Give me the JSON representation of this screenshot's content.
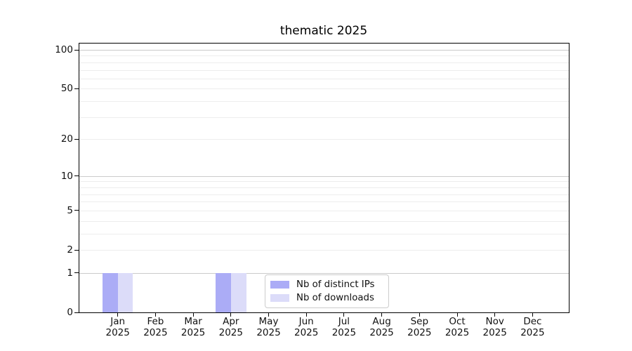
{
  "chart_data": {
    "type": "bar",
    "title": "thematic 2025",
    "categories": [
      "Jan",
      "Feb",
      "Mar",
      "Apr",
      "May",
      "Jun",
      "Jul",
      "Aug",
      "Sep",
      "Oct",
      "Nov",
      "Dec"
    ],
    "x_tick_year": "2025",
    "series": [
      {
        "name": "Nb of distinct IPs",
        "color": "#abacf6",
        "values": [
          1,
          0,
          0,
          1,
          0,
          0,
          0,
          0,
          0,
          0,
          0,
          0
        ]
      },
      {
        "name": "Nb of downloads",
        "color": "#dcdcf9",
        "values": [
          1,
          0,
          0,
          1,
          0,
          0,
          0,
          0,
          0,
          0,
          0,
          0
        ]
      }
    ],
    "yscale": "log1p",
    "ylim": [
      0,
      112
    ],
    "ytick_values": [
      0,
      1,
      2,
      5,
      10,
      20,
      50,
      100
    ],
    "ytick_labels": [
      "0",
      "1",
      "2",
      "5",
      "10",
      "20",
      "50",
      "100"
    ],
    "major_gridlines": [
      1,
      10,
      100
    ],
    "minor_gridlines": [
      2,
      3,
      4,
      5,
      6,
      7,
      8,
      9,
      20,
      30,
      40,
      50,
      60,
      70,
      80,
      90
    ],
    "grid": true,
    "legend_position": "lower center, inside plot"
  },
  "colors": {
    "background": "#ffffff",
    "axis": "#000000",
    "text": "#111111",
    "major_grid": "#cbcbcb",
    "minor_grid": "#ededed",
    "legend_border": "#cccccc",
    "series_dark": "#abacf6",
    "series_light": "#dcdcf9"
  }
}
